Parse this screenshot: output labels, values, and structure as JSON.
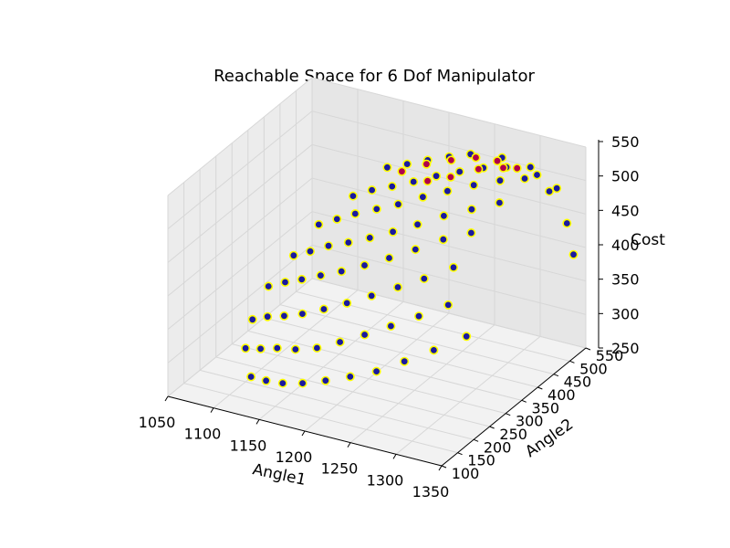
{
  "chart_data": {
    "type": "scatter",
    "projection": "3d",
    "title": "Reachable Space for 6 Dof Manipulator",
    "xlabel": "Angle1",
    "ylabel": "Angle2",
    "zlabel": "Cost",
    "xlim": [
      1050,
      1350
    ],
    "ylim": [
      100,
      550
    ],
    "zlim": [
      250,
      550
    ],
    "x_ticks": [
      1050,
      1100,
      1150,
      1200,
      1250,
      1300,
      1350
    ],
    "y_ticks": [
      100,
      150,
      200,
      250,
      300,
      350,
      400,
      450,
      500,
      550
    ],
    "z_ticks": [
      250,
      300,
      350,
      400,
      450,
      500,
      550
    ],
    "grid": true,
    "legend": "none",
    "marker_edge_color": "#ffff00",
    "series": [
      {
        "color": "#1a1a9e",
        "description": "blue points with yellow edges forming a half-dome reachable surface",
        "points": [
          [
            1120,
            160,
            280
          ],
          [
            1140,
            150,
            285
          ],
          [
            1160,
            145,
            290
          ],
          [
            1180,
            150,
            295
          ],
          [
            1200,
            165,
            300
          ],
          [
            1220,
            185,
            305
          ],
          [
            1240,
            210,
            310
          ],
          [
            1260,
            240,
            320
          ],
          [
            1280,
            275,
            330
          ],
          [
            1300,
            320,
            340
          ],
          [
            1100,
            200,
            300
          ],
          [
            1120,
            190,
            310
          ],
          [
            1140,
            185,
            320
          ],
          [
            1160,
            185,
            325
          ],
          [
            1180,
            195,
            330
          ],
          [
            1200,
            210,
            340
          ],
          [
            1220,
            230,
            350
          ],
          [
            1240,
            255,
            360
          ],
          [
            1260,
            285,
            370
          ],
          [
            1280,
            320,
            380
          ],
          [
            1090,
            250,
            320
          ],
          [
            1110,
            240,
            335
          ],
          [
            1130,
            235,
            345
          ],
          [
            1150,
            235,
            355
          ],
          [
            1170,
            245,
            365
          ],
          [
            1190,
            260,
            375
          ],
          [
            1210,
            280,
            385
          ],
          [
            1230,
            305,
            395
          ],
          [
            1250,
            330,
            405
          ],
          [
            1270,
            365,
            415
          ],
          [
            1090,
            300,
            350
          ],
          [
            1110,
            295,
            365
          ],
          [
            1130,
            290,
            378
          ],
          [
            1150,
            292,
            390
          ],
          [
            1170,
            300,
            400
          ],
          [
            1190,
            315,
            410
          ],
          [
            1210,
            335,
            420
          ],
          [
            1230,
            360,
            430
          ],
          [
            1250,
            390,
            440
          ],
          [
            1270,
            420,
            445
          ],
          [
            1100,
            350,
            380
          ],
          [
            1120,
            345,
            395
          ],
          [
            1140,
            345,
            410
          ],
          [
            1160,
            350,
            420
          ],
          [
            1180,
            360,
            430
          ],
          [
            1200,
            375,
            440
          ],
          [
            1220,
            395,
            450
          ],
          [
            1240,
            420,
            460
          ],
          [
            1260,
            450,
            465
          ],
          [
            1280,
            480,
            470
          ],
          [
            1110,
            400,
            410
          ],
          [
            1130,
            400,
            425
          ],
          [
            1150,
            400,
            440
          ],
          [
            1170,
            410,
            450
          ],
          [
            1190,
            420,
            460
          ],
          [
            1210,
            440,
            470
          ],
          [
            1230,
            460,
            478
          ],
          [
            1250,
            485,
            484
          ],
          [
            1270,
            510,
            488
          ],
          [
            1290,
            530,
            490
          ],
          [
            1130,
            450,
            440
          ],
          [
            1150,
            452,
            455
          ],
          [
            1170,
            458,
            465
          ],
          [
            1190,
            468,
            475
          ],
          [
            1210,
            482,
            485
          ],
          [
            1230,
            498,
            492
          ],
          [
            1250,
            515,
            498
          ],
          [
            1270,
            530,
            500
          ],
          [
            1300,
            540,
            495
          ],
          [
            1320,
            545,
            480
          ],
          [
            1150,
            500,
            470
          ],
          [
            1170,
            505,
            480
          ],
          [
            1190,
            512,
            490
          ],
          [
            1210,
            522,
            498
          ],
          [
            1230,
            532,
            505
          ],
          [
            1260,
            545,
            505
          ],
          [
            1290,
            548,
            500
          ],
          [
            1310,
            550,
            470
          ],
          [
            1330,
            548,
            430
          ],
          [
            1340,
            540,
            390
          ]
        ]
      },
      {
        "color": "#b0004a",
        "description": "highlighted high-cost points near the top of the dome",
        "points": [
          [
            1200,
            480,
            500
          ],
          [
            1220,
            500,
            505
          ],
          [
            1240,
            520,
            508
          ],
          [
            1260,
            530,
            506
          ],
          [
            1230,
            470,
            495
          ],
          [
            1180,
            460,
            490
          ],
          [
            1250,
            500,
            502
          ],
          [
            1280,
            535,
            500
          ],
          [
            1210,
            455,
            488
          ],
          [
            1270,
            520,
            503
          ]
        ]
      }
    ]
  }
}
